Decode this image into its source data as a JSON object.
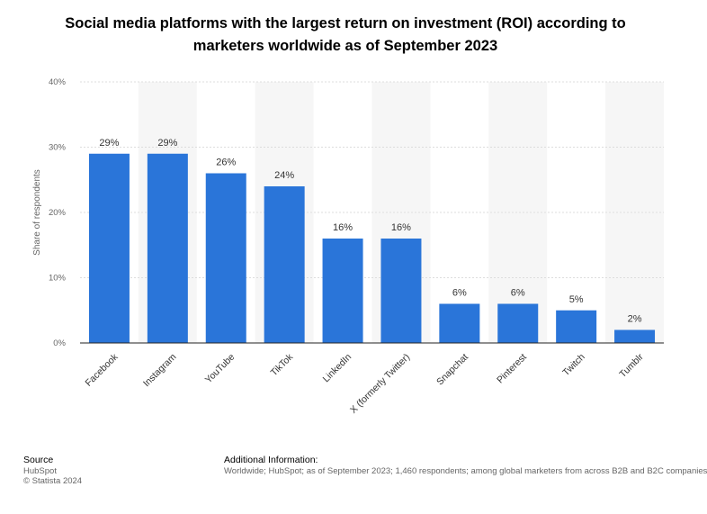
{
  "chart_data": {
    "type": "bar",
    "title": "Social media platforms with the largest return on investment (ROI) according to marketers worldwide as of September 2023",
    "xlabel": "",
    "ylabel": "Share of respondents",
    "categories": [
      "Facebook",
      "Instagram",
      "YouTube",
      "TikTok",
      "LinkedIn",
      "X (formerly Twitter)",
      "Snapchat",
      "Pinterest",
      "Twitch",
      "Tumblr"
    ],
    "values": [
      29,
      29,
      26,
      24,
      16,
      16,
      6,
      6,
      5,
      2
    ],
    "value_labels": [
      "29%",
      "29%",
      "26%",
      "24%",
      "16%",
      "16%",
      "6%",
      "6%",
      "5%",
      "2%"
    ],
    "ylim": [
      0,
      40
    ],
    "yticks": [
      0,
      10,
      20,
      30,
      40
    ],
    "ytick_labels": [
      "0%",
      "10%",
      "20%",
      "30%",
      "40%"
    ],
    "grid": true,
    "bar_color": "#2a75d9"
  },
  "footer": {
    "source_heading": "Source",
    "source_name": "HubSpot",
    "copyright": "© Statista 2024",
    "info_heading": "Additional Information:",
    "info_text": "Worldwide; HubSpot; as of September 2023; 1,460 respondents; among global marketers from across B2B and B2C companies"
  }
}
